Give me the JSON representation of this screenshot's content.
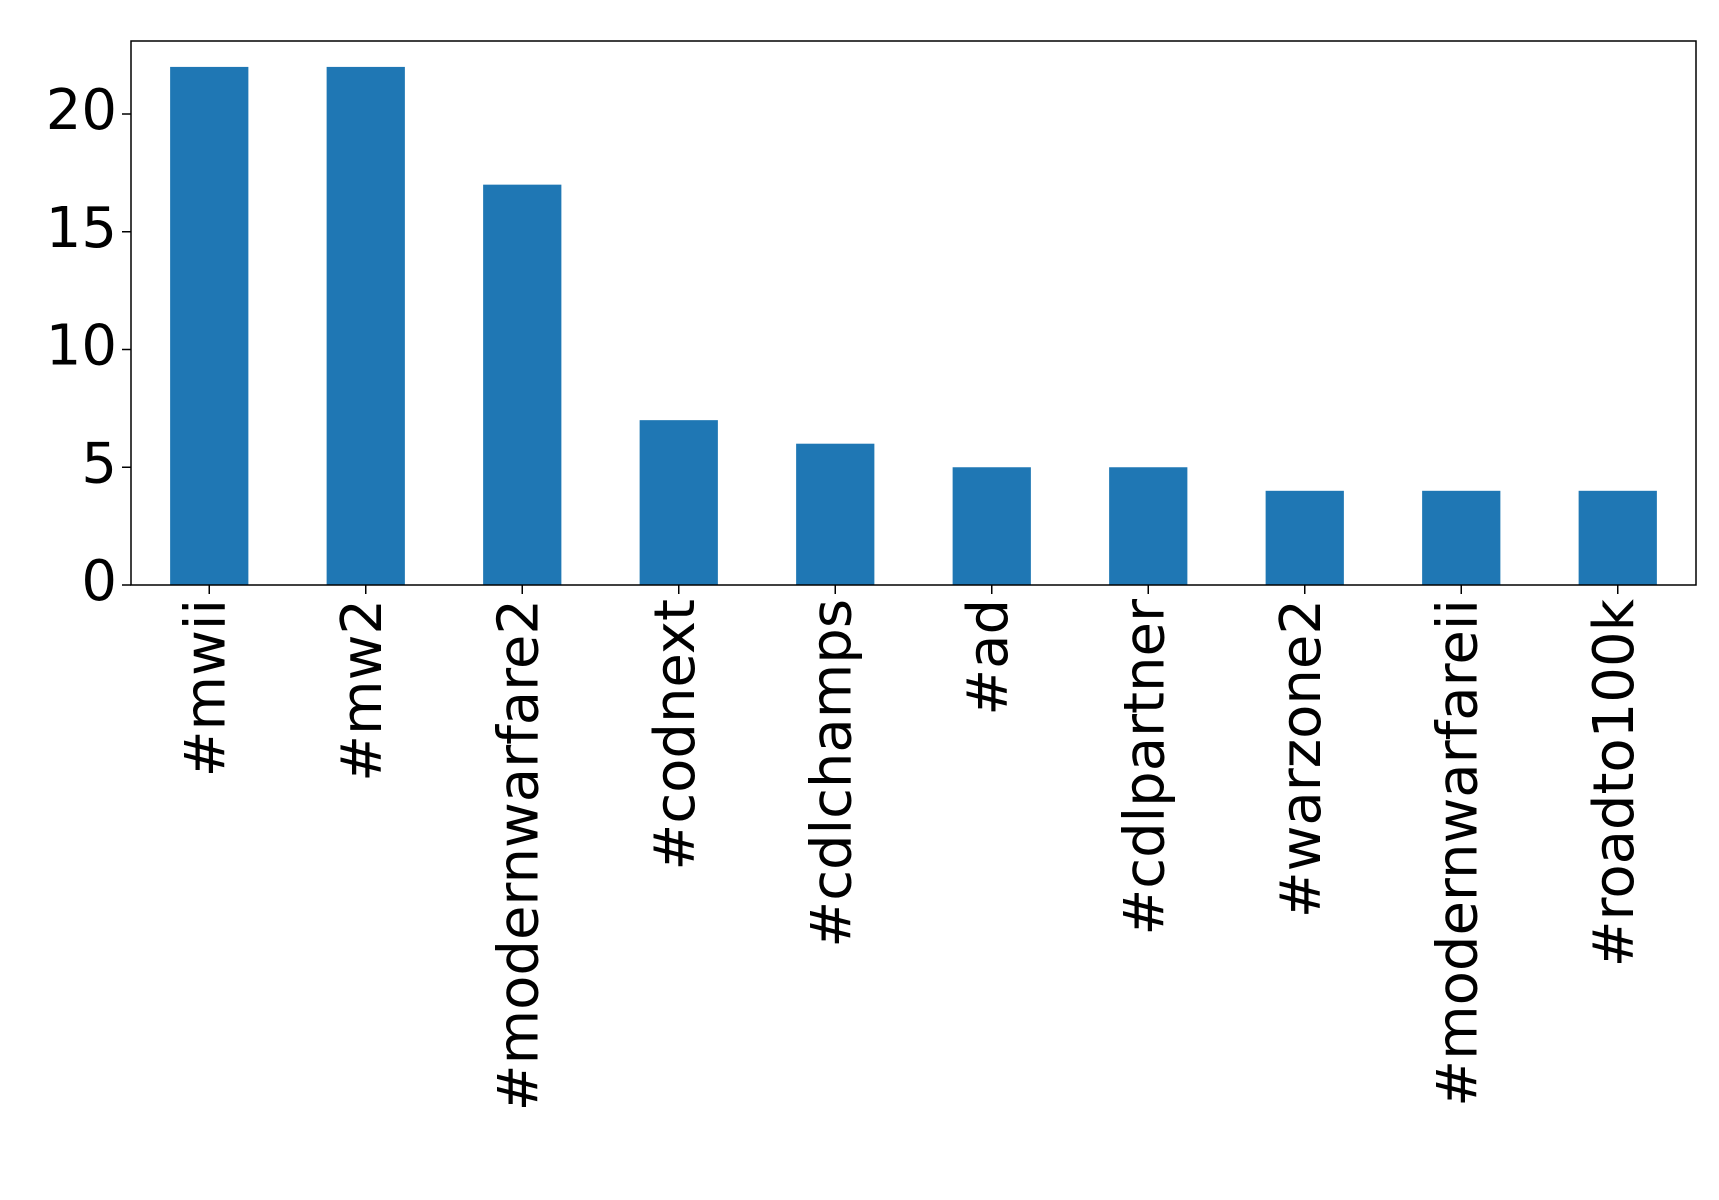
{
  "chart_data": {
    "type": "bar",
    "categories": [
      "#mwii",
      "#mw2",
      "#modernwarfare2",
      "#codnext",
      "#cdlchamps",
      "#ad",
      "#cdlpartner",
      "#warzone2",
      "#modernwarfareii",
      "#roadto100k"
    ],
    "values": [
      22,
      22,
      17,
      7,
      6,
      5,
      5,
      4,
      4,
      4
    ],
    "color": "#1f77b4",
    "ylim": [
      0,
      23.1
    ],
    "yticks": [
      0,
      5,
      10,
      15,
      20
    ],
    "grid": false
  }
}
